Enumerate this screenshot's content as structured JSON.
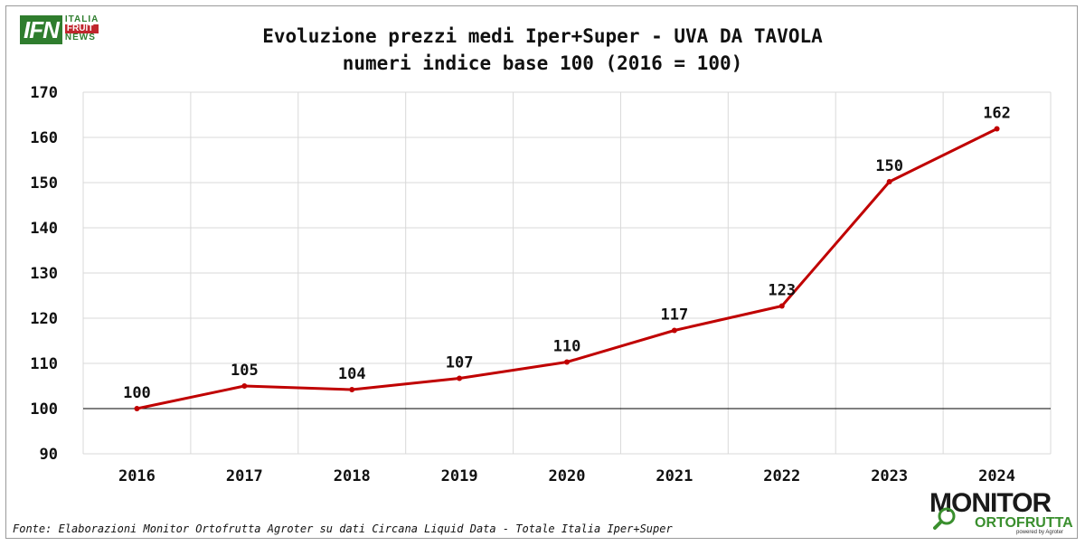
{
  "logo": {
    "main": "IFN",
    "line1": "ITALIA",
    "line2": "FRUIT",
    "line3": "NEWS"
  },
  "chart_data": {
    "type": "line",
    "title": "Evoluzione prezzi medi Iper+Super - UVA DA TAVOLA",
    "subtitle": "numeri indice base 100 (2016 = 100)",
    "categories": [
      "2016",
      "2017",
      "2018",
      "2019",
      "2020",
      "2021",
      "2022",
      "2023",
      "2024"
    ],
    "series": [
      {
        "name": "UVA DA TAVOLA",
        "values": [
          100,
          105,
          104.2,
          106.7,
          110.3,
          117.3,
          122.7,
          150.2,
          161.9
        ],
        "labels": [
          "100",
          "105",
          "104",
          "107",
          "110",
          "117",
          "123",
          "150",
          "162"
        ],
        "color": "#c00000"
      }
    ],
    "ylim": [
      90,
      170
    ],
    "yticks": [
      90,
      100,
      110,
      120,
      130,
      140,
      150,
      160,
      170
    ],
    "baseline": 100,
    "grid": true
  },
  "source": "Fonte: Elaborazioni Monitor Ortofrutta Agroter su dati Circana Liquid Data - Totale Italia Iper+Super",
  "brand": {
    "line1": "MONITOR",
    "line2": "ORTOFRUTTA",
    "line3": "powered by Agroter",
    "accent": "#3a8f2e"
  }
}
